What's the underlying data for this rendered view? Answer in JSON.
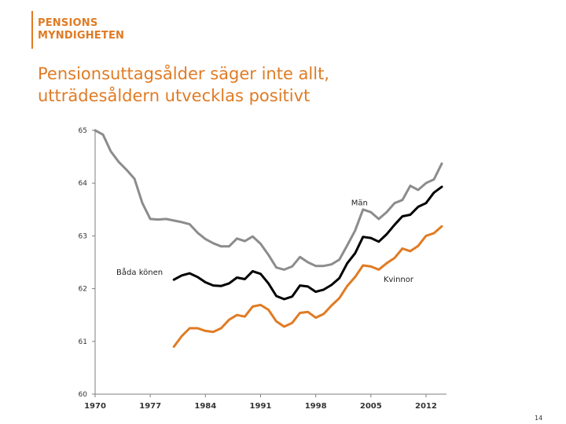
{
  "logo": {
    "line1": "PENSIONS",
    "line2": "MYNDIGHETEN"
  },
  "slide": {
    "title_line1": "Pensionsuttagsålder säger inte allt,",
    "title_line2": "utträdesåldern utvecklas positivt",
    "page_number": "14"
  },
  "colors": {
    "brand": "#e07b24",
    "man": "#8c8c8c",
    "bada": "#000000",
    "kvinnor": "#e07b24",
    "axis": "#7f7f7f"
  },
  "chart_data": {
    "type": "line",
    "title": "",
    "xlabel": "",
    "ylabel": "",
    "xlim": [
      1970,
      2014.6
    ],
    "ylim": [
      60,
      65
    ],
    "x_ticks": [
      1970,
      1977,
      1984,
      1991,
      1998,
      2005,
      2012
    ],
    "y_ticks": [
      60,
      61,
      62,
      63,
      64,
      65
    ],
    "grid": false,
    "series": [
      {
        "name": "Män",
        "color_key": "man",
        "x": [
          1970,
          1971,
          1972,
          1973,
          1974,
          1975,
          1976,
          1977,
          1978,
          1979,
          1980,
          1981,
          1982,
          1983,
          1984,
          1985,
          1986,
          1987,
          1988,
          1989,
          1990,
          1991,
          1992,
          1993,
          1994,
          1995,
          1996,
          1997,
          1998,
          1999,
          2000,
          2001,
          2002,
          2003,
          2004,
          2005,
          2006,
          2007,
          2008,
          2009,
          2010,
          2011,
          2012,
          2013,
          2014
        ],
        "values": [
          65,
          64.92,
          64.6,
          64.4,
          64.25,
          64.08,
          63.62,
          63.32,
          63.31,
          63.32,
          63.29,
          63.26,
          63.22,
          63.06,
          62.94,
          62.86,
          62.8,
          62.8,
          62.95,
          62.9,
          62.99,
          62.85,
          62.64,
          62.4,
          62.36,
          62.42,
          62.6,
          62.5,
          62.43,
          62.43,
          62.46,
          62.55,
          62.82,
          63.1,
          63.5,
          63.45,
          63.32,
          63.45,
          63.62,
          63.68,
          63.95,
          63.87,
          64.0,
          64.07,
          64.37
        ]
      },
      {
        "name": "Båda könen",
        "color_key": "bada",
        "x": [
          1980,
          1981,
          1982,
          1983,
          1984,
          1985,
          1986,
          1987,
          1988,
          1989,
          1990,
          1991,
          1992,
          1993,
          1994,
          1995,
          1996,
          1997,
          1998,
          1999,
          2000,
          2001,
          2002,
          2003,
          2004,
          2005,
          2006,
          2007,
          2008,
          2009,
          2010,
          2011,
          2012,
          2013,
          2014
        ],
        "values": [
          62.17,
          62.25,
          62.29,
          62.22,
          62.12,
          62.06,
          62.05,
          62.1,
          62.21,
          62.18,
          62.33,
          62.28,
          62.1,
          61.86,
          61.8,
          61.85,
          62.06,
          62.04,
          61.94,
          61.98,
          62.07,
          62.2,
          62.48,
          62.67,
          62.98,
          62.96,
          62.89,
          63.03,
          63.21,
          63.37,
          63.4,
          63.55,
          63.62,
          63.82,
          63.93
        ]
      },
      {
        "name": "Kvinnor",
        "color_key": "kvinnor",
        "x": [
          1980,
          1981,
          1982,
          1983,
          1984,
          1985,
          1986,
          1987,
          1988,
          1989,
          1990,
          1991,
          1992,
          1993,
          1994,
          1995,
          1996,
          1997,
          1998,
          1999,
          2000,
          2001,
          2002,
          2003,
          2004,
          2005,
          2006,
          2007,
          2008,
          2009,
          2010,
          2011,
          2012,
          2013,
          2014
        ],
        "values": [
          60.9,
          61.1,
          61.25,
          61.25,
          61.2,
          61.18,
          61.25,
          61.41,
          61.5,
          61.47,
          61.66,
          61.69,
          61.6,
          61.38,
          61.28,
          61.35,
          61.54,
          61.56,
          61.45,
          61.52,
          61.68,
          61.82,
          62.05,
          62.22,
          62.44,
          62.42,
          62.36,
          62.48,
          62.58,
          62.76,
          62.71,
          62.81,
          63.0,
          63.05,
          63.18
        ]
      }
    ],
    "annotations": [
      {
        "text": "Män",
        "x": 2002.5,
        "y": 63.58
      },
      {
        "text": "Båda könen",
        "x": 1972.7,
        "y": 62.26
      },
      {
        "text": "Kvinnor",
        "x": 2006.6,
        "y": 62.13
      }
    ]
  }
}
